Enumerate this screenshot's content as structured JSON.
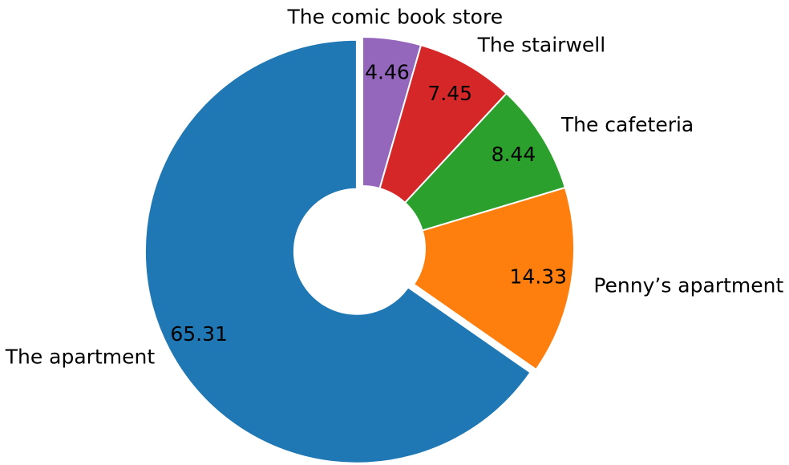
{
  "chart_data": {
    "type": "pie",
    "subtype": "donut",
    "title": "",
    "categories": [
      "The apartment",
      "Penny’s apartment",
      "The cafeteria",
      "The stairwell",
      "The comic book store"
    ],
    "values": [
      65.31,
      14.33,
      8.44,
      7.45,
      4.46
    ],
    "value_labels": [
      "65.31",
      "14.33",
      "8.44",
      "7.45",
      "4.46"
    ],
    "colors": [
      "#1f77b4",
      "#ff7f0e",
      "#2ca02c",
      "#d62728",
      "#9467bd"
    ],
    "start": "top",
    "direction": "clockwise",
    "exploded": [
      "The apartment"
    ],
    "legend": "none"
  }
}
